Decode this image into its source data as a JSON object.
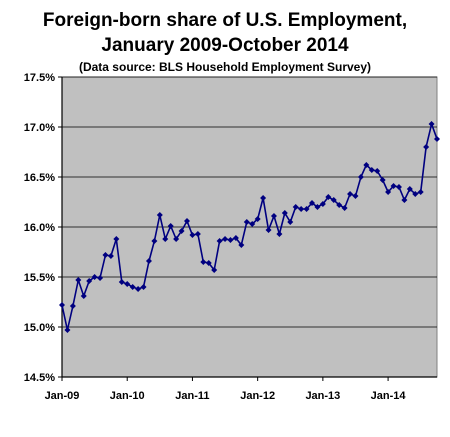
{
  "chart_data": {
    "type": "line",
    "title_line1": "Foreign-born share of U.S. Employment,",
    "title_line2": "January 2009-October 2014",
    "subtitle": "(Data source: BLS Household Employment Survey)",
    "xlabel": "",
    "ylabel": "",
    "ylim": [
      14.5,
      17.5
    ],
    "y_ticks": [
      "14.5%",
      "15.0%",
      "15.5%",
      "16.0%",
      "16.5%",
      "17.0%",
      "17.5%"
    ],
    "x_ticks": [
      "Jan-09",
      "Jan-10",
      "Jan-11",
      "Jan-12",
      "Jan-13",
      "Jan-14"
    ],
    "grid": "horizontal",
    "legend": "none",
    "colors": {
      "line": "#000080",
      "plot_bg": "#c0c0c0",
      "grid": "#000000"
    },
    "x": [
      "2009-01",
      "2009-02",
      "2009-03",
      "2009-04",
      "2009-05",
      "2009-06",
      "2009-07",
      "2009-08",
      "2009-09",
      "2009-10",
      "2009-11",
      "2009-12",
      "2010-01",
      "2010-02",
      "2010-03",
      "2010-04",
      "2010-05",
      "2010-06",
      "2010-07",
      "2010-08",
      "2010-09",
      "2010-10",
      "2010-11",
      "2010-12",
      "2011-01",
      "2011-02",
      "2011-03",
      "2011-04",
      "2011-05",
      "2011-06",
      "2011-07",
      "2011-08",
      "2011-09",
      "2011-10",
      "2011-11",
      "2011-12",
      "2012-01",
      "2012-02",
      "2012-03",
      "2012-04",
      "2012-05",
      "2012-06",
      "2012-07",
      "2012-08",
      "2012-09",
      "2012-10",
      "2012-11",
      "2012-12",
      "2013-01",
      "2013-02",
      "2013-03",
      "2013-04",
      "2013-05",
      "2013-06",
      "2013-07",
      "2013-08",
      "2013-09",
      "2013-10",
      "2013-11",
      "2013-12",
      "2014-01",
      "2014-02",
      "2014-03",
      "2014-04",
      "2014-05",
      "2014-06",
      "2014-07",
      "2014-08",
      "2014-09",
      "2014-10"
    ],
    "series": [
      {
        "values": [
          15.22,
          14.97,
          15.21,
          15.47,
          15.31,
          15.46,
          15.5,
          15.49,
          15.72,
          15.71,
          15.88,
          15.45,
          15.43,
          15.4,
          15.38,
          15.4,
          15.66,
          15.86,
          16.12,
          15.88,
          16.01,
          15.88,
          15.96,
          16.06,
          15.92,
          15.93,
          15.65,
          15.64,
          15.57,
          15.86,
          15.88,
          15.87,
          15.89,
          15.82,
          16.05,
          16.03,
          16.08,
          16.29,
          15.97,
          16.11,
          15.93,
          16.14,
          16.05,
          16.2,
          16.18,
          16.18,
          16.24,
          16.2,
          16.23,
          16.3,
          16.27,
          16.22,
          16.19,
          16.33,
          16.31,
          16.5,
          16.62,
          16.57,
          16.56,
          16.47,
          16.35,
          16.41,
          16.4,
          16.27,
          16.38,
          16.33,
          16.35,
          16.8,
          17.03,
          16.88
        ]
      }
    ]
  }
}
